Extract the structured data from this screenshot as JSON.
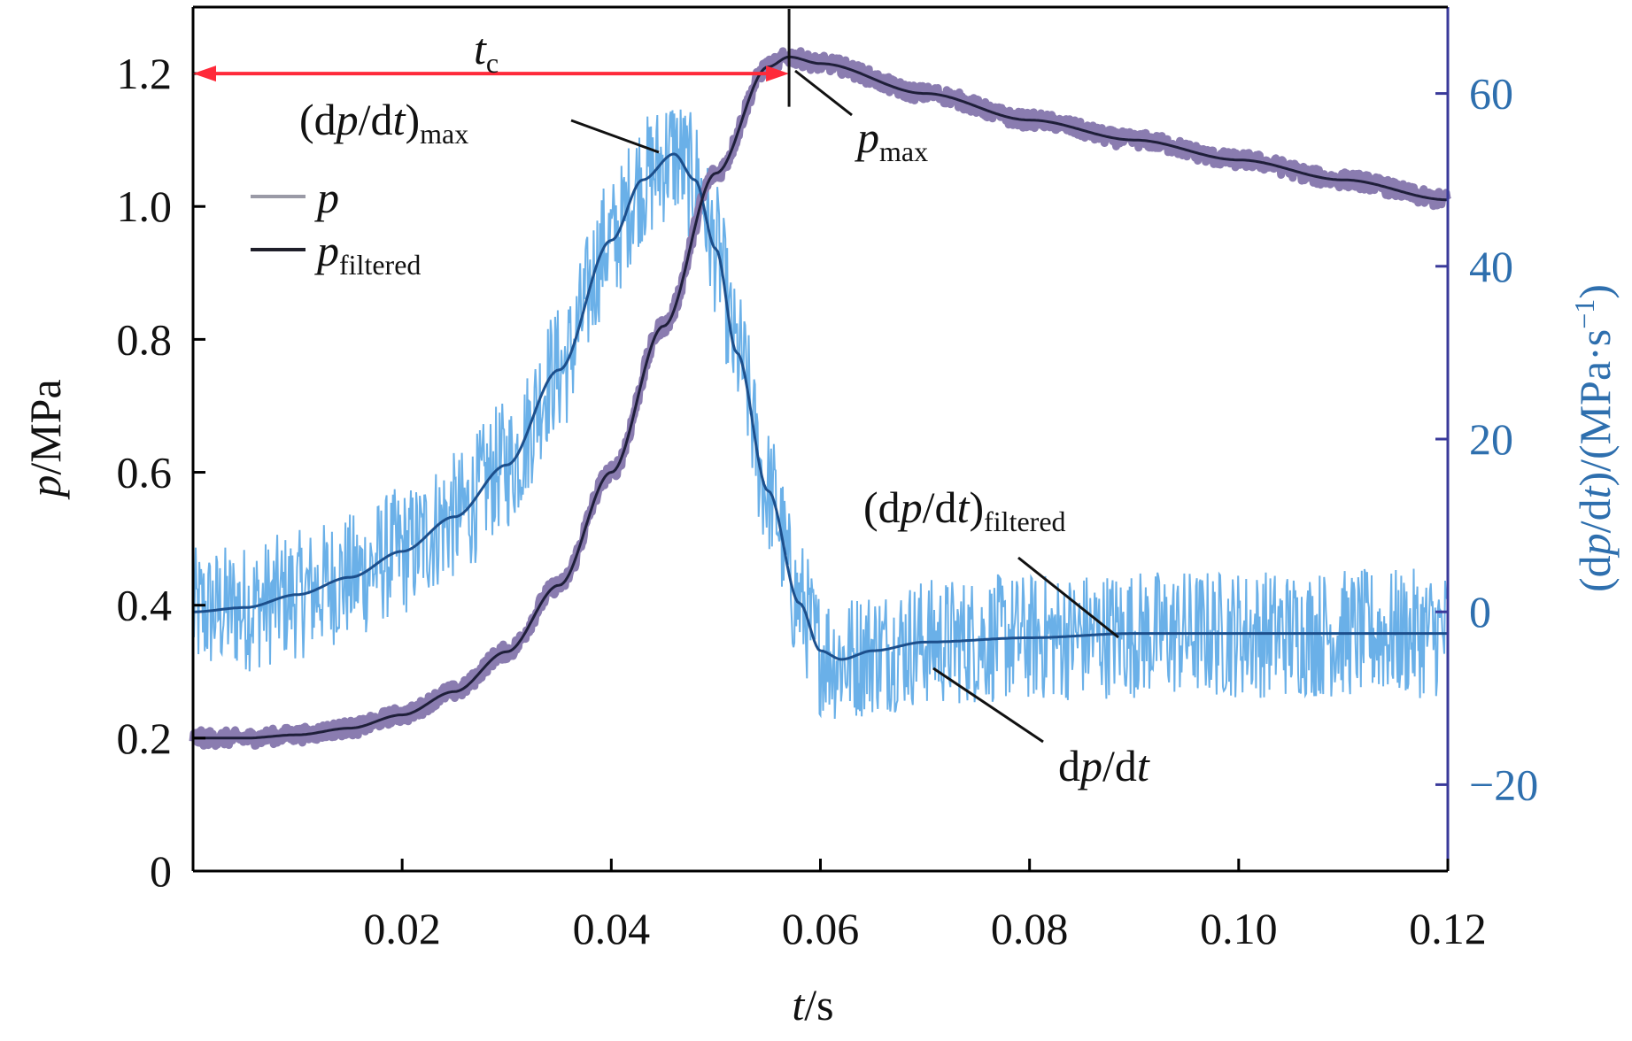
{
  "chart_data": {
    "type": "line",
    "title": "",
    "xlabel": {
      "var": "t",
      "unit": "/s"
    },
    "ylabel_left": {
      "var": "p",
      "unit": "/MPa"
    },
    "ylabel_right": {
      "pre": "(d",
      "var1": "p",
      "mid": "/d",
      "var2": "t",
      "post": ")/(MPa·s",
      "sup": "−1",
      "close": ")"
    },
    "xlim": [
      0,
      0.12
    ],
    "ylim_left": [
      0,
      1.3
    ],
    "ylim_right": [
      -30,
      70
    ],
    "x_ticks": [
      0.02,
      0.04,
      0.06,
      0.08,
      0.1,
      0.12
    ],
    "x_tick_labels": [
      "0.02",
      "0.04",
      "0.06",
      "0.08",
      "0.10",
      "0.12"
    ],
    "y_left_ticks": [
      0,
      0.2,
      0.4,
      0.6,
      0.8,
      1.0,
      1.2
    ],
    "y_left_tick_labels": [
      "0",
      "0.2",
      "0.4",
      "0.6",
      "0.8",
      "1.0",
      "1.2"
    ],
    "y_right_ticks": [
      -20,
      0,
      20,
      40,
      60
    ],
    "y_right_tick_labels": [
      "−20",
      "0",
      "20",
      "40",
      "60"
    ],
    "colors": {
      "p_raw": "#8a7cb0",
      "p_filtered": "#1f1f3a",
      "dpdt_raw": "#6ab0e8",
      "dpdt_filtered": "#1c4f8c",
      "right_axis": "#3a3a9a",
      "right_tick_labels": "#2e6fae",
      "t_c_arrow": "#ff2a3a",
      "axis": "#000000"
    },
    "legend": {
      "position": "upper-left",
      "entries": [
        {
          "var": "p",
          "sub": "",
          "color": "#9a9aa6"
        },
        {
          "var": "p",
          "sub": "filtered",
          "color": "#1f1f2a"
        }
      ]
    },
    "series": [
      {
        "name": "p_filtered",
        "axis": "left",
        "x": [
          0,
          0.005,
          0.01,
          0.015,
          0.02,
          0.025,
          0.03,
          0.035,
          0.04,
          0.045,
          0.05,
          0.055,
          0.057,
          0.06,
          0.07,
          0.08,
          0.09,
          0.1,
          0.11,
          0.12
        ],
        "values": [
          0.2,
          0.2,
          0.205,
          0.215,
          0.235,
          0.27,
          0.33,
          0.43,
          0.6,
          0.82,
          1.05,
          1.21,
          1.225,
          1.215,
          1.17,
          1.13,
          1.1,
          1.07,
          1.04,
          1.01
        ]
      },
      {
        "name": "dpdt_filtered",
        "axis": "right",
        "x": [
          0,
          0.005,
          0.01,
          0.015,
          0.02,
          0.025,
          0.03,
          0.035,
          0.04,
          0.043,
          0.046,
          0.048,
          0.05,
          0.052,
          0.055,
          0.058,
          0.06,
          0.062,
          0.065,
          0.07,
          0.08,
          0.09,
          0.1,
          0.11,
          0.12
        ],
        "values": [
          0,
          0.5,
          2,
          4,
          7,
          11,
          17,
          28,
          43,
          50,
          53,
          50,
          42,
          30,
          14,
          1,
          -4.5,
          -5.5,
          -4.5,
          -3.5,
          -3,
          -2.5,
          -2.5,
          -2.5,
          -2.5
        ]
      }
    ],
    "annotations": {
      "t_c": {
        "var": "t",
        "sub": "c",
        "x_end": 0.057
      },
      "dpdt_max": {
        "pre": "(d",
        "var": "p",
        "mid": "/d",
        "var2": "t",
        "post": ")",
        "sub": "max"
      },
      "p_max": {
        "var": "p",
        "sub": "max"
      },
      "dpdt_filtered": {
        "pre": "(d",
        "var": "p",
        "mid": "/d",
        "var2": "t",
        "post": ")",
        "sub": "filtered"
      },
      "dpdt": {
        "pre": "d",
        "var": "p",
        "mid": "/d",
        "var2": "t"
      }
    }
  }
}
